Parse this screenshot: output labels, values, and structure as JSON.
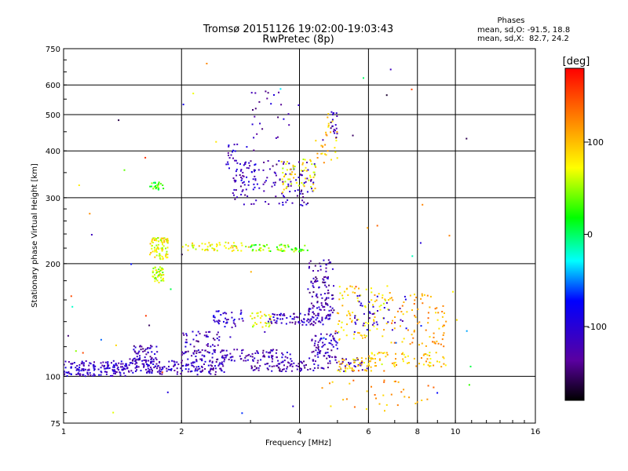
{
  "chart_data": {
    "type": "scatter",
    "title": "Tromsø 20151126 19:02:00-19:03:43",
    "subtitle": "RwPretec (8p)",
    "xlabel": "Frequency [MHz]",
    "ylabel": "Stationary phase Virtual Height [km]",
    "xscale": "log",
    "yscale": "log",
    "xlim": [
      1,
      16
    ],
    "ylim": [
      75,
      750
    ],
    "x_ticks": [
      1,
      2,
      4,
      6,
      8,
      10,
      16
    ],
    "y_ticks": [
      75,
      100,
      200,
      300,
      400,
      500,
      600,
      750
    ],
    "grid": true,
    "stats": {
      "heading": "Phases",
      "line_o": "mean, sd,O: -91.5, 18.8",
      "line_x": "mean, sd,X:  82.7, 24.2"
    },
    "colorbar": {
      "label": "[deg]",
      "range": [
        -180,
        180
      ],
      "ticks": [
        100,
        0,
        -100
      ],
      "colormap": "rainbow"
    },
    "clusters": [
      {
        "x": [
          1.0,
          1.45
        ],
        "y": [
          100,
          110
        ],
        "deg": -110,
        "n": 160
      },
      {
        "x": [
          1.45,
          1.7
        ],
        "y": [
          102,
          112
        ],
        "deg": -115,
        "n": 70
      },
      {
        "x": [
          1.5,
          1.75
        ],
        "y": [
          110,
          122
        ],
        "deg": -120,
        "n": 45
      },
      {
        "x": [
          1.7,
          2.6
        ],
        "y": [
          101,
          110
        ],
        "deg": -115,
        "n": 120
      },
      {
        "x": [
          2.0,
          3.8
        ],
        "y": [
          110,
          118
        ],
        "deg": -120,
        "n": 130
      },
      {
        "x": [
          2.0,
          2.5
        ],
        "y": [
          120,
          132
        ],
        "deg": -120,
        "n": 40
      },
      {
        "x": [
          3.0,
          4.2
        ],
        "y": [
          103,
          110
        ],
        "deg": -125,
        "n": 70
      },
      {
        "x": [
          4.2,
          6.0
        ],
        "y": [
          103,
          112
        ],
        "deg": -120,
        "n": 50
      },
      {
        "x": [
          5.0,
          6.5
        ],
        "y": [
          103,
          112
        ],
        "deg": 90,
        "n": 50
      },
      {
        "x": [
          6.0,
          9.5
        ],
        "y": [
          106,
          116
        ],
        "deg": 95,
        "n": 60
      },
      {
        "x": [
          1.68,
          1.8
        ],
        "y": [
          178,
          196
        ],
        "deg": 60,
        "n": 50
      },
      {
        "x": [
          1.66,
          1.85
        ],
        "y": [
          205,
          235
        ],
        "deg": 75,
        "n": 80
      },
      {
        "x": [
          1.66,
          1.8
        ],
        "y": [
          315,
          330
        ],
        "deg": 30,
        "n": 25
      },
      {
        "x": [
          2.0,
          3.0
        ],
        "y": [
          216,
          228
        ],
        "deg": 75,
        "n": 55
      },
      {
        "x": [
          3.0,
          4.2
        ],
        "y": [
          215,
          225
        ],
        "deg": 40,
        "n": 55
      },
      {
        "x": [
          2.4,
          2.9
        ],
        "y": [
          135,
          150
        ],
        "deg": -110,
        "n": 40
      },
      {
        "x": [
          3.0,
          3.4
        ],
        "y": [
          135,
          150
        ],
        "deg": 70,
        "n": 30
      },
      {
        "x": [
          3.3,
          4.8
        ],
        "y": [
          137,
          147
        ],
        "deg": -115,
        "n": 90
      },
      {
        "x": [
          4.2,
          4.9
        ],
        "y": [
          145,
          205
        ],
        "deg": -125,
        "n": 110
      },
      {
        "x": [
          4.3,
          5.0
        ],
        "y": [
          112,
          132
        ],
        "deg": -120,
        "n": 70
      },
      {
        "x": [
          5.0,
          6.8
        ],
        "y": [
          125,
          175
        ],
        "deg": 90,
        "n": 90
      },
      {
        "x": [
          6.8,
          9.5
        ],
        "y": [
          120,
          170
        ],
        "deg": 110,
        "n": 80
      },
      {
        "x": [
          5.5,
          7.5
        ],
        "y": [
          130,
          165
        ],
        "deg": -110,
        "n": 40
      },
      {
        "x": [
          2.7,
          4.4
        ],
        "y": [
          285,
          380
        ],
        "deg": -120,
        "n": 130
      },
      {
        "x": [
          3.6,
          4.4
        ],
        "y": [
          310,
          380
        ],
        "deg": 80,
        "n": 60
      },
      {
        "x": [
          2.6,
          3.1
        ],
        "y": [
          330,
          420
        ],
        "deg": -110,
        "n": 40
      },
      {
        "x": [
          3.0,
          4.0
        ],
        "y": [
          420,
          580
        ],
        "deg": -120,
        "n": 25
      },
      {
        "x": [
          4.4,
          5.0
        ],
        "y": [
          370,
          510
        ],
        "deg": 100,
        "n": 30
      },
      {
        "x": [
          4.8,
          5.0
        ],
        "y": [
          430,
          510
        ],
        "deg": -130,
        "n": 20
      },
      {
        "x": [
          4.5,
          9.0
        ],
        "y": [
          80,
          98
        ],
        "deg": 110,
        "n": 35
      },
      {
        "x": [
          1.0,
          12.0
        ],
        "y": [
          78,
          700
        ],
        "deg": 0,
        "n": 60
      }
    ]
  }
}
